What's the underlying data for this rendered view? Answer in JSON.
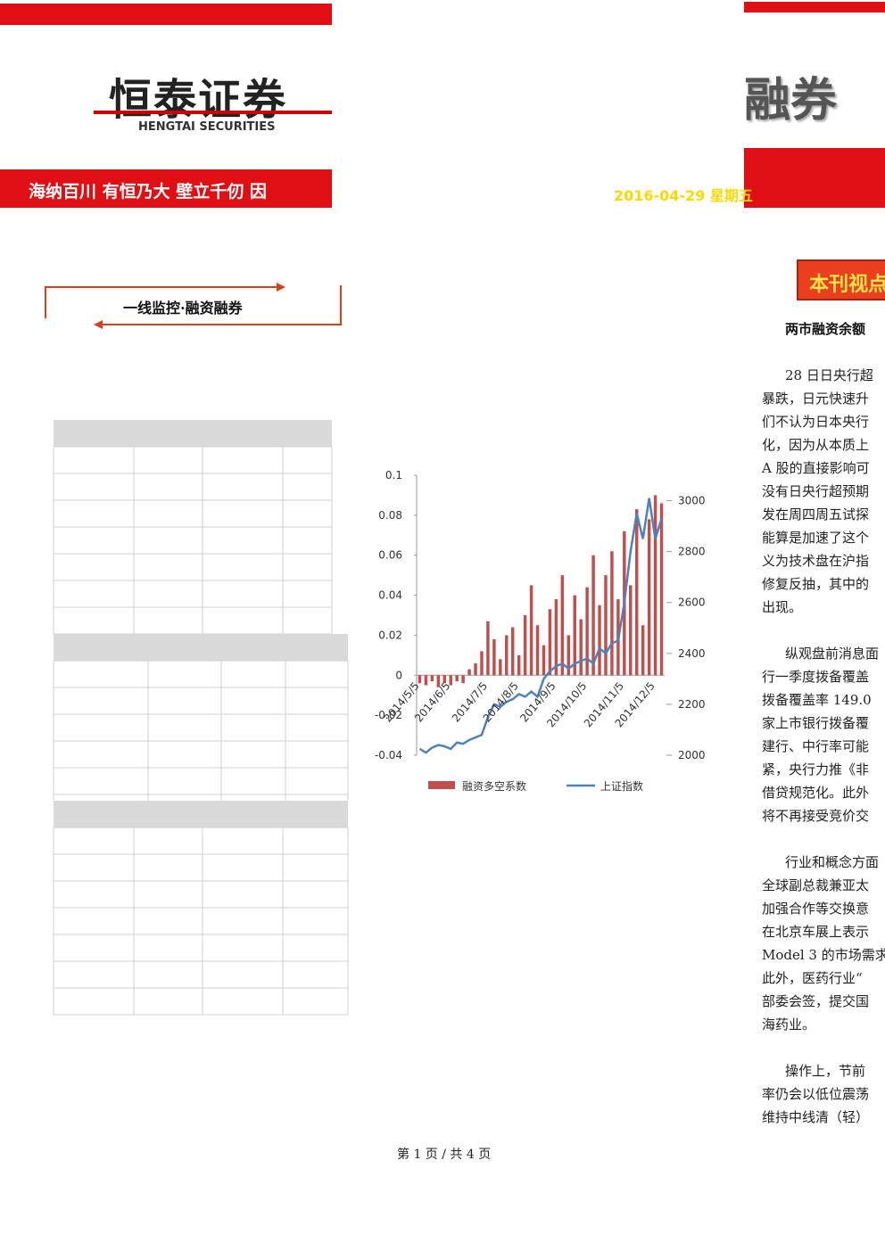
{
  "header": {
    "logo_cn": "恒泰证券",
    "logo_en": "HENGTAI SECURITIES",
    "slogan": "海纳百川 有恒乃大 壁立千仞 因",
    "title_fragment": "融券",
    "date": "2016-04-29 星期五"
  },
  "section": {
    "label": "一线监控·融资融券"
  },
  "sidebar": {
    "title": "本刊视点",
    "headline": "两市融资余额",
    "paragraphs": [
      [
        "28 日日央行超",
        "暴跌，日元快速升",
        "们不认为日本央行",
        "化，因为从本质上",
        "A 股的直接影响可",
        "没有日央行超预期",
        "发在周四周五试探",
        "能算是加速了这个",
        "义为技术盘在沪指",
        "修复反抽，其中的",
        "出现。"
      ],
      [
        "纵观盘前消息面",
        "行一季度拨备覆盖",
        "拨备覆盖率 149.0",
        "家上市银行拨备覆",
        "建行、中行率可能",
        "紧，央行力推《非",
        "借贷规范化。此外",
        "将不再接受竞价交"
      ],
      [
        "行业和概念方面",
        "全球副总裁兼亚太",
        "加强合作等交换意",
        "在北京车展上表示",
        "Model 3 的市场需求",
        "此外，医药行业“",
        "部委会签，提交国",
        "海药业。"
      ],
      [
        "操作上，节前",
        "率仍会以低位震荡",
        "维持中线清（轻）"
      ]
    ]
  },
  "chart_data": {
    "type": "bar-line",
    "categories": [
      "2014/5/5",
      null,
      null,
      null,
      null,
      "2014/6/5",
      null,
      null,
      null,
      null,
      null,
      "2014/7/5",
      null,
      null,
      null,
      null,
      "2014/8/5",
      null,
      null,
      null,
      null,
      null,
      "2014/9/5",
      null,
      null,
      null,
      null,
      "2014/10/5",
      null,
      null,
      null,
      null,
      null,
      "2014/11/5",
      null,
      null,
      null,
      null,
      "2014/12/5",
      null
    ],
    "series": [
      {
        "name": "融资多空系数",
        "color": "#c0504d",
        "type": "bar",
        "values": [
          -0.004,
          -0.005,
          -0.003,
          -0.006,
          -0.004,
          -0.005,
          -0.003,
          -0.004,
          0.003,
          0.006,
          0.012,
          0.027,
          0.018,
          0.008,
          0.02,
          0.024,
          0.01,
          0.03,
          0.045,
          0.025,
          0.015,
          0.033,
          0.038,
          0.05,
          0.02,
          0.04,
          0.028,
          0.044,
          0.06,
          0.035,
          0.05,
          0.062,
          0.038,
          0.072,
          0.045,
          0.083,
          0.025,
          0.078,
          0.09,
          0.086
        ]
      },
      {
        "name": "上证指数",
        "color": "#4f81bd",
        "type": "line",
        "axis": "y2",
        "values": [
          2025,
          2010,
          2030,
          2040,
          2035,
          2025,
          2050,
          2045,
          2060,
          2070,
          2080,
          2150,
          2200,
          2190,
          2210,
          2220,
          2240,
          2230,
          2250,
          2230,
          2300,
          2330,
          2350,
          2360,
          2340,
          2360,
          2370,
          2380,
          2360,
          2420,
          2400,
          2440,
          2450,
          2600,
          2800,
          2950,
          2850,
          3010,
          2850,
          2930
        ]
      }
    ],
    "ylim": [
      -0.04,
      0.1
    ],
    "yticks": [
      0.1,
      0.08,
      0.06,
      0.04,
      0.02,
      0,
      -0.02,
      -0.04
    ],
    "y2lim": [
      2000,
      3100
    ],
    "y2ticks": [
      3000,
      2800,
      2600,
      2400,
      2200,
      2000
    ]
  },
  "footer": {
    "page": "第 1 页 / 共 4 页"
  }
}
